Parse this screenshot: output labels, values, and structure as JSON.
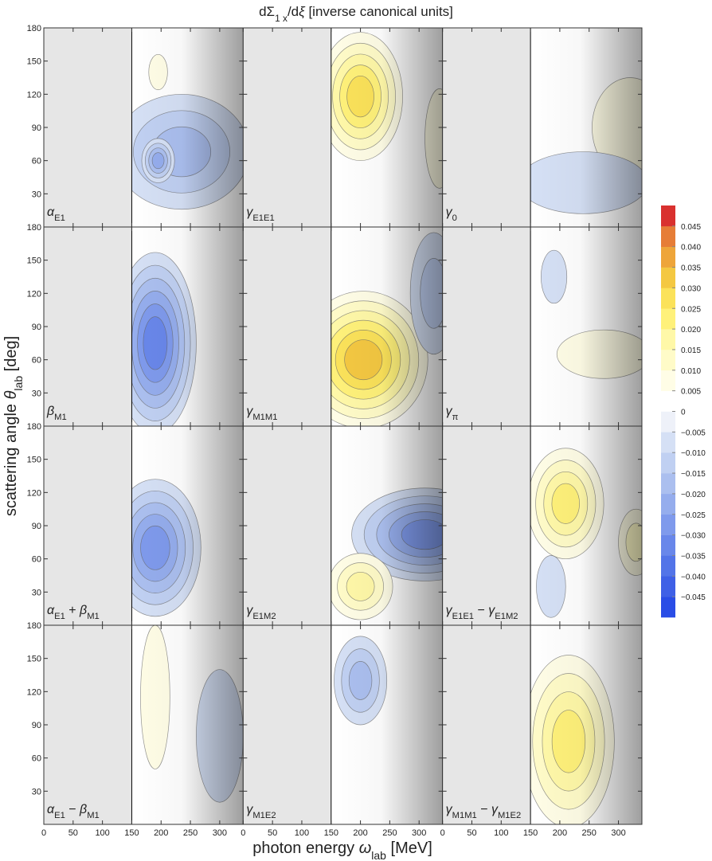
{
  "chart_data": {
    "type": "contour",
    "title": [
      {
        "text": "dΣ"
      },
      {
        "text": "1 x",
        "sub": true
      },
      {
        "text": "/d"
      },
      {
        "text": "ξ",
        "italic": true
      },
      {
        "text": " [inverse canonical units]"
      }
    ],
    "x_label": [
      {
        "text": "photon energy "
      },
      {
        "text": "ω",
        "italic": true
      },
      {
        "text": "lab",
        "sub": true
      },
      {
        "text": " [MeV]"
      }
    ],
    "y_label": [
      {
        "text": "scattering angle "
      },
      {
        "text": "θ",
        "italic": true
      },
      {
        "text": "lab",
        "sub": true
      },
      {
        "text": " [deg]"
      }
    ],
    "xlim": [
      0,
      340
    ],
    "xticks": [
      0,
      50,
      100,
      150,
      200,
      250,
      300
    ],
    "ylim": [
      0,
      180
    ],
    "yticks": [
      30,
      60,
      90,
      120,
      150,
      180
    ],
    "threshold_line_x": 150,
    "colorbar": {
      "clim": [
        -0.05,
        0.05
      ],
      "ticks": [
        0.045,
        {
          "value": 0.04,
          "label": "0.040"
        },
        0.035,
        {
          "value": 0.03,
          "label": "0.030"
        },
        0.025,
        {
          "value": 0.02,
          "label": "0.020"
        },
        0.015,
        {
          "value": 0.01,
          "label": "0.010"
        },
        0.005,
        0,
        {
          "value": -0.005,
          "label": "−0.005"
        },
        {
          "value": -0.01,
          "label": "−0.010"
        },
        {
          "value": -0.015,
          "label": "−0.015"
        },
        {
          "value": -0.02,
          "label": "−0.020"
        },
        {
          "value": -0.025,
          "label": "−0.025"
        },
        {
          "value": -0.03,
          "label": "−0.030"
        },
        {
          "value": -0.035,
          "label": "−0.035"
        },
        {
          "value": -0.04,
          "label": "−0.040"
        },
        {
          "value": -0.045,
          "label": "−0.045"
        }
      ],
      "colors": [
        "#2a4de6",
        "#3f60e6",
        "#5374e8",
        "#6987ea",
        "#7f9aec",
        "#95aded",
        "#abbfef",
        "#c0d0f2",
        "#d5e0f5",
        "#eef1f9",
        "#ffffff",
        "#fffde6",
        "#fffbc8",
        "#fff8a8",
        "#fff17a",
        "#fbe25a",
        "#f4c842",
        "#eea53a",
        "#e67d37",
        "#d9312f"
      ]
    },
    "panels": [
      {
        "label": [
          {
            "text": "α",
            "italic": true
          },
          {
            "text": "E1",
            "sub": true
          }
        ],
        "blobs": [
          {
            "x": 195,
            "y": 140,
            "rx": 16,
            "ry": 16,
            "value": 0.007
          },
          {
            "x": 235,
            "y": 68,
            "rx": 115,
            "ry": 52,
            "value": -0.016
          },
          {
            "x": 195,
            "y": 60,
            "rx": 28,
            "ry": 20,
            "value": -0.021
          }
        ]
      },
      {
        "label": [
          {
            "text": "γ",
            "italic": true
          },
          {
            "text": "E1E1",
            "sub": true
          }
        ],
        "blobs": [
          {
            "x": 200,
            "y": 118,
            "rx": 72,
            "ry": 58,
            "value": 0.027
          },
          {
            "x": 335,
            "y": 80,
            "rx": 25,
            "ry": 45,
            "value": 0.006
          }
        ]
      },
      {
        "label": [
          {
            "text": "γ",
            "italic": true
          },
          {
            "text": "0",
            "sub": true
          }
        ],
        "blobs": [
          {
            "x": 320,
            "y": 90,
            "rx": 65,
            "ry": 45,
            "value": 0.007
          },
          {
            "x": 240,
            "y": 40,
            "rx": 110,
            "ry": 28,
            "value": -0.006
          }
        ]
      },
      {
        "label": [
          {
            "text": "β",
            "italic": true
          },
          {
            "text": "M1",
            "sub": true
          }
        ],
        "blobs": [
          {
            "x": 190,
            "y": 75,
            "rx": 70,
            "ry": 82,
            "value": -0.032
          }
        ]
      },
      {
        "label": [
          {
            "text": "γ",
            "italic": true
          },
          {
            "text": "M1M1",
            "sub": true
          }
        ],
        "blobs": [
          {
            "x": 205,
            "y": 60,
            "rx": 110,
            "ry": 62,
            "value": 0.032
          },
          {
            "x": 325,
            "y": 120,
            "rx": 40,
            "ry": 55,
            "value": -0.012
          }
        ]
      },
      {
        "label": [
          {
            "text": "γ",
            "italic": true
          },
          {
            "text": "π",
            "sub": true
          }
        ],
        "blobs": [
          {
            "x": 190,
            "y": 135,
            "rx": 22,
            "ry": 24,
            "value": -0.007
          },
          {
            "x": 275,
            "y": 65,
            "rx": 80,
            "ry": 22,
            "value": 0.006
          }
        ]
      },
      {
        "label": [
          {
            "text": "α",
            "italic": true
          },
          {
            "text": "E1",
            "sub": true
          },
          {
            "text": " + "
          },
          {
            "text": "β",
            "italic": true
          },
          {
            "text": "M1",
            "sub": true
          }
        ],
        "blobs": [
          {
            "x": 190,
            "y": 70,
            "rx": 78,
            "ry": 62,
            "value": -0.027
          }
        ]
      },
      {
        "label": [
          {
            "text": "γ",
            "italic": true
          },
          {
            "text": "E1M2",
            "sub": true
          }
        ],
        "blobs": [
          {
            "x": 310,
            "y": 82,
            "rx": 125,
            "ry": 42,
            "value": -0.025
          },
          {
            "x": 200,
            "y": 35,
            "rx": 55,
            "ry": 30,
            "value": 0.015
          }
        ]
      },
      {
        "label": [
          {
            "text": "γ",
            "italic": true
          },
          {
            "text": "E1E1",
            "sub": true
          },
          {
            "text": " − "
          },
          {
            "text": "γ",
            "italic": true
          },
          {
            "text": "E1M2",
            "sub": true
          }
        ],
        "blobs": [
          {
            "x": 210,
            "y": 110,
            "rx": 65,
            "ry": 50,
            "value": 0.022
          },
          {
            "x": 185,
            "y": 35,
            "rx": 25,
            "ry": 28,
            "value": -0.008
          },
          {
            "x": 330,
            "y": 75,
            "rx": 30,
            "ry": 30,
            "value": 0.01
          }
        ]
      },
      {
        "label": [
          {
            "text": "α",
            "italic": true
          },
          {
            "text": "E1",
            "sub": true
          },
          {
            "text": " − "
          },
          {
            "text": "β",
            "italic": true
          },
          {
            "text": "M1",
            "sub": true
          }
        ],
        "blobs": [
          {
            "x": 190,
            "y": 115,
            "rx": 25,
            "ry": 65,
            "value": 0.007
          },
          {
            "x": 300,
            "y": 80,
            "rx": 40,
            "ry": 60,
            "value": -0.006
          }
        ]
      },
      {
        "label": [
          {
            "text": "γ",
            "italic": true
          },
          {
            "text": "M1E2",
            "sub": true
          }
        ],
        "blobs": [
          {
            "x": 200,
            "y": 130,
            "rx": 45,
            "ry": 40,
            "value": -0.017
          }
        ]
      },
      {
        "label": [
          {
            "text": "γ",
            "italic": true
          },
          {
            "text": "M1M1",
            "sub": true
          },
          {
            "text": " − "
          },
          {
            "text": "γ",
            "italic": true
          },
          {
            "text": "M1E2",
            "sub": true
          }
        ],
        "blobs": [
          {
            "x": 215,
            "y": 75,
            "rx": 78,
            "ry": 78,
            "value": 0.02
          }
        ]
      }
    ]
  }
}
